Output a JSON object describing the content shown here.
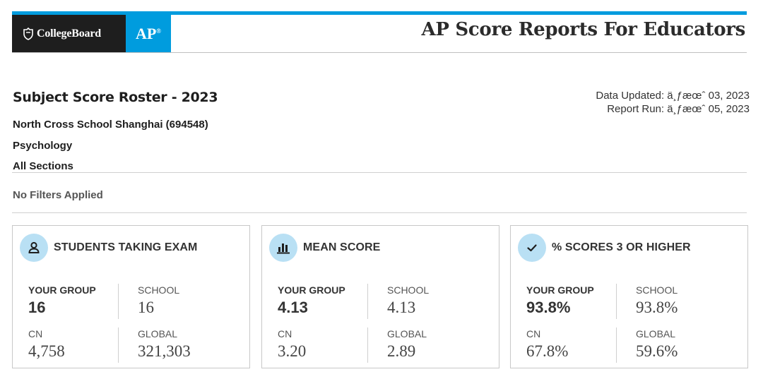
{
  "header": {
    "brand": "CollegeBoard",
    "ap_logo": "AP",
    "title": "AP Score Reports For Educators"
  },
  "report": {
    "title": "Subject Score Roster - 2023",
    "school": "North Cross School Shanghai (694548)",
    "subject": "Psychology",
    "sections": "All Sections",
    "data_updated": "Data Updated: ä¸ƒæœˆ 03, 2023",
    "report_run": "Report Run: ä¸ƒæœˆ 05, 2023",
    "filters": "No Filters Applied"
  },
  "icons": {
    "students": "person-icon",
    "mean": "bar-chart-icon",
    "percent": "checkmark-icon"
  },
  "colors": {
    "accent": "#009cde",
    "brand_dark": "#1e1e1e",
    "icon_bg": "#b9e0f4"
  },
  "cards": [
    {
      "title": "STUDENTS TAKING EXAM",
      "your_group_label": "YOUR GROUP",
      "your_group_value": "16",
      "school_label": "SCHOOL",
      "school_value": "16",
      "cn_label": "CN",
      "cn_value": "4,758",
      "global_label": "GLOBAL",
      "global_value": "321,303"
    },
    {
      "title": "MEAN SCORE",
      "your_group_label": "YOUR GROUP",
      "your_group_value": "4.13",
      "school_label": "SCHOOL",
      "school_value": "4.13",
      "cn_label": "CN",
      "cn_value": "3.20",
      "global_label": "GLOBAL",
      "global_value": "2.89"
    },
    {
      "title": "% SCORES 3 OR HIGHER",
      "your_group_label": "YOUR GROUP",
      "your_group_value": "93.8%",
      "school_label": "SCHOOL",
      "school_value": "93.8%",
      "cn_label": "CN",
      "cn_value": "67.8%",
      "global_label": "GLOBAL",
      "global_value": "59.6%"
    }
  ]
}
